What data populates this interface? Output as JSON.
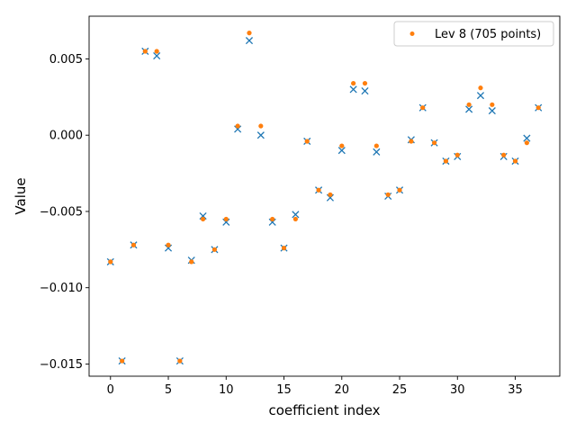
{
  "chart_data": {
    "type": "scatter",
    "xlabel": "coefficient index",
    "ylabel": "Value",
    "xlim": [
      -1.85,
      38.85
    ],
    "ylim": [
      -0.0158,
      0.0078
    ],
    "xticks": [
      0,
      5,
      10,
      15,
      20,
      25,
      30,
      35
    ],
    "yticks": [
      -0.015,
      -0.01,
      -0.005,
      0.0,
      0.005
    ],
    "ytick_labels": [
      "−0.015",
      "−0.010",
      "−0.005",
      "0.000",
      "0.005"
    ],
    "grid": false,
    "legend_position": "top-right",
    "series": [
      {
        "marker": "x",
        "color": "#1f77b4",
        "x": [
          0,
          1,
          2,
          3,
          4,
          5,
          6,
          7,
          8,
          9,
          10,
          11,
          12,
          13,
          14,
          15,
          16,
          17,
          18,
          19,
          20,
          21,
          22,
          23,
          24,
          25,
          26,
          27,
          28,
          29,
          30,
          31,
          32,
          33,
          34,
          35,
          36,
          37
        ],
        "values": [
          -0.0083,
          -0.0148,
          -0.0072,
          0.0055,
          0.0052,
          -0.0074,
          -0.0148,
          -0.0082,
          -0.0053,
          -0.0075,
          -0.0057,
          0.0004,
          0.0062,
          0.0,
          -0.0057,
          -0.0074,
          -0.0052,
          -0.0004,
          -0.0036,
          -0.0041,
          -0.001,
          0.003,
          0.0029,
          -0.0011,
          -0.004,
          -0.0036,
          -0.0003,
          0.0018,
          -0.0005,
          -0.0017,
          -0.0014,
          0.0017,
          0.0026,
          0.0016,
          -0.0014,
          -0.0017,
          -0.0002,
          0.0018
        ]
      },
      {
        "name": "Lev 8 (705 points)",
        "marker": "dot",
        "color": "#ff7f0e",
        "x": [
          0,
          1,
          2,
          3,
          4,
          5,
          6,
          7,
          8,
          9,
          10,
          11,
          12,
          13,
          14,
          15,
          16,
          17,
          18,
          19,
          20,
          21,
          22,
          23,
          24,
          25,
          26,
          27,
          28,
          29,
          30,
          31,
          32,
          33,
          34,
          35,
          36,
          37
        ],
        "values": [
          -0.0083,
          -0.0148,
          -0.0072,
          0.0055,
          0.0055,
          -0.0072,
          -0.0148,
          -0.0083,
          -0.0055,
          -0.0075,
          -0.0055,
          0.0006,
          0.0067,
          0.0006,
          -0.0055,
          -0.0074,
          -0.0055,
          -0.0004,
          -0.0036,
          -0.0039,
          -0.0007,
          0.0034,
          0.0034,
          -0.0007,
          -0.0039,
          -0.0036,
          -0.0004,
          0.0018,
          -0.0005,
          -0.0017,
          -0.0013,
          0.002,
          0.0031,
          0.002,
          -0.0013,
          -0.0017,
          -0.0005,
          0.0018
        ]
      }
    ]
  }
}
